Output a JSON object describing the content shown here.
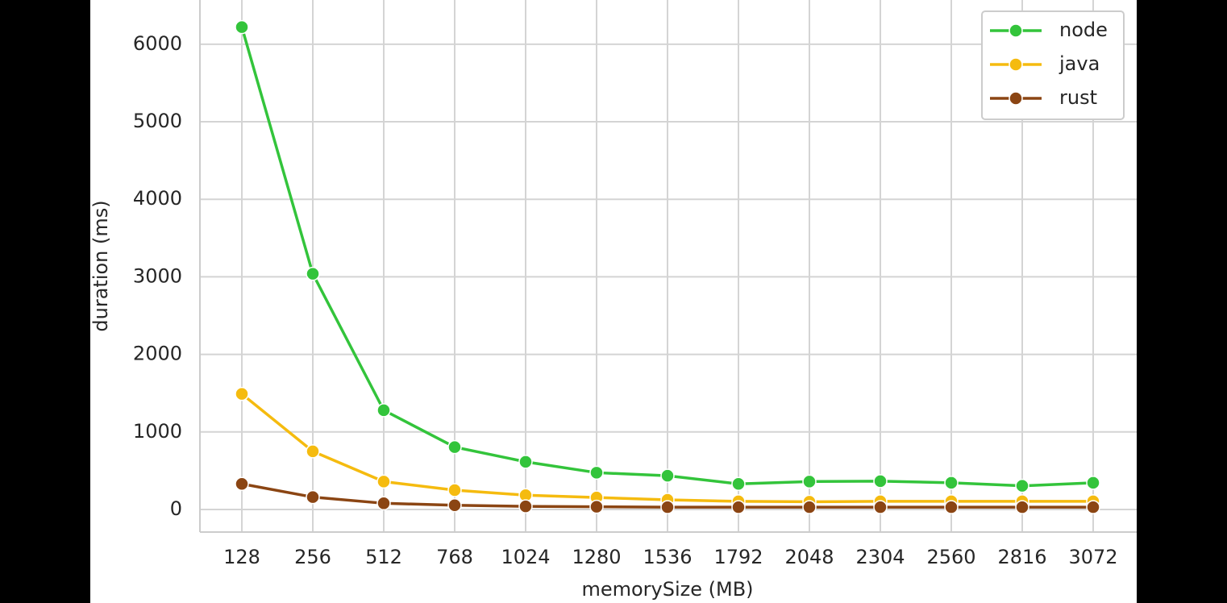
{
  "chart_data": {
    "type": "line",
    "x_label": "memorySize (MB)",
    "y_label": "duration (ms)",
    "categories": [
      "128",
      "256",
      "512",
      "768",
      "1024",
      "1280",
      "1536",
      "1792",
      "2048",
      "2304",
      "2560",
      "2816",
      "3072"
    ],
    "series": [
      {
        "name": "node",
        "color": "#33c43b",
        "values": [
          6220,
          3040,
          1280,
          805,
          615,
          475,
          435,
          330,
          360,
          365,
          345,
          305,
          345
        ]
      },
      {
        "name": "java",
        "color": "#f5bb0f",
        "values": [
          1490,
          750,
          360,
          250,
          185,
          155,
          125,
          105,
          100,
          105,
          105,
          105,
          105
        ]
      },
      {
        "name": "rust",
        "color": "#8b4513",
        "values": [
          330,
          160,
          80,
          55,
          40,
          35,
          30,
          30,
          30,
          30,
          30,
          30,
          30
        ]
      }
    ],
    "ylim": [
      -291,
      6570
    ],
    "yticks": [
      0,
      1000,
      2000,
      3000,
      4000,
      5000,
      6000
    ],
    "grid": true,
    "legend": "upper right"
  }
}
